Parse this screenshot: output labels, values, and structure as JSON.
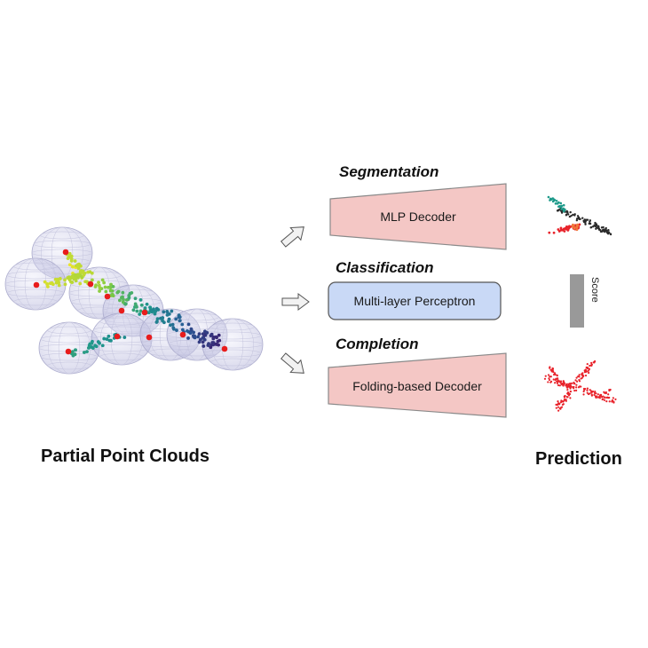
{
  "left_title": "Partial Point Clouds",
  "right_title": "Prediction",
  "tasks": {
    "segmentation": {
      "title": "Segmentation",
      "decoder": "MLP Decoder"
    },
    "classification": {
      "title": "Classification",
      "decoder": "Multi-layer Perceptron",
      "output": "Score"
    },
    "completion": {
      "title": "Completion",
      "decoder": "Folding-based Decoder"
    }
  },
  "colors": {
    "trapezoid_fill": "#f4c7c5",
    "mlp_fill": "#c9d9f6",
    "score_bar": "#999999",
    "patch_center": "#e81c1c",
    "completion_points": "#e8232b"
  }
}
